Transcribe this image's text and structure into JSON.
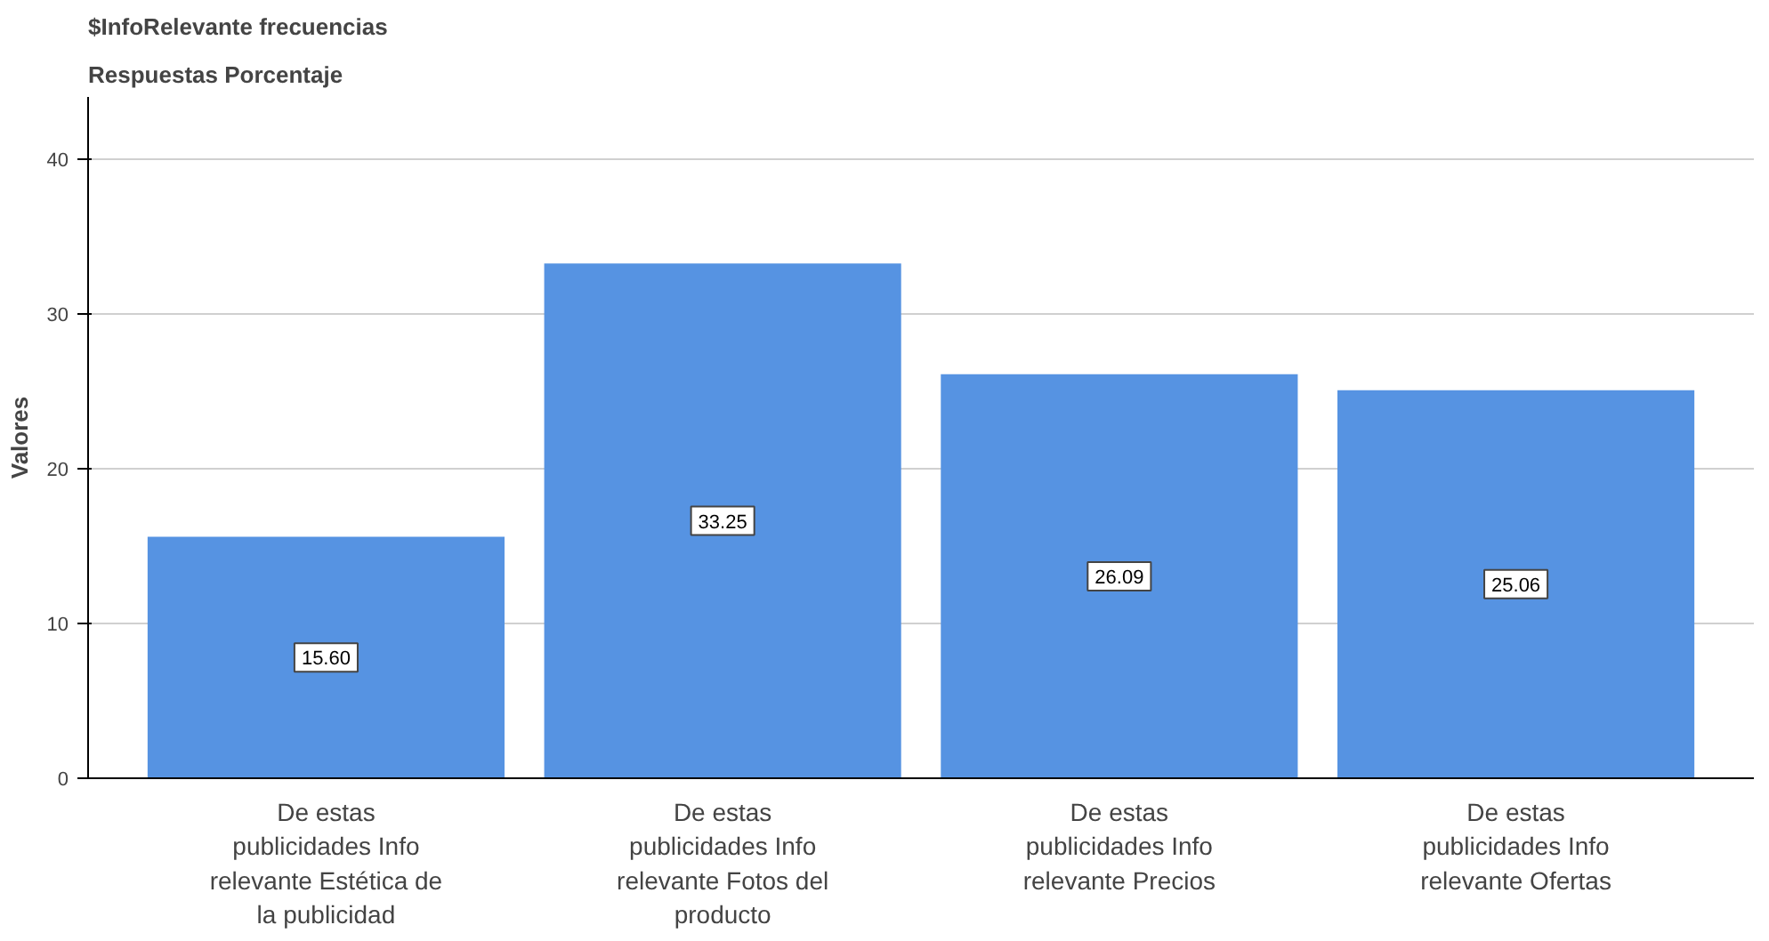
{
  "chart_data": {
    "type": "bar",
    "title": "$InfoRelevante frecuencias",
    "subtitle": "Respuestas Porcentaje",
    "ylabel": "Valores",
    "categories": [
      "De estas\npublicidades Info\nrelevante Estética de\nla publicidad",
      "De estas\npublicidades Info\nrelevante Fotos del\nproducto",
      "De estas\npublicidades Info\nrelevante Precios",
      "De estas\npublicidades Info\nrelevante Ofertas"
    ],
    "values": [
      15.6,
      33.25,
      26.09,
      25.06
    ],
    "value_labels": [
      "15.60",
      "33.25",
      "26.09",
      "25.06"
    ],
    "color": "#5693e2",
    "ylim": [
      0,
      44
    ],
    "yticks": [
      0,
      10,
      20,
      30,
      40
    ],
    "grid": "y"
  }
}
